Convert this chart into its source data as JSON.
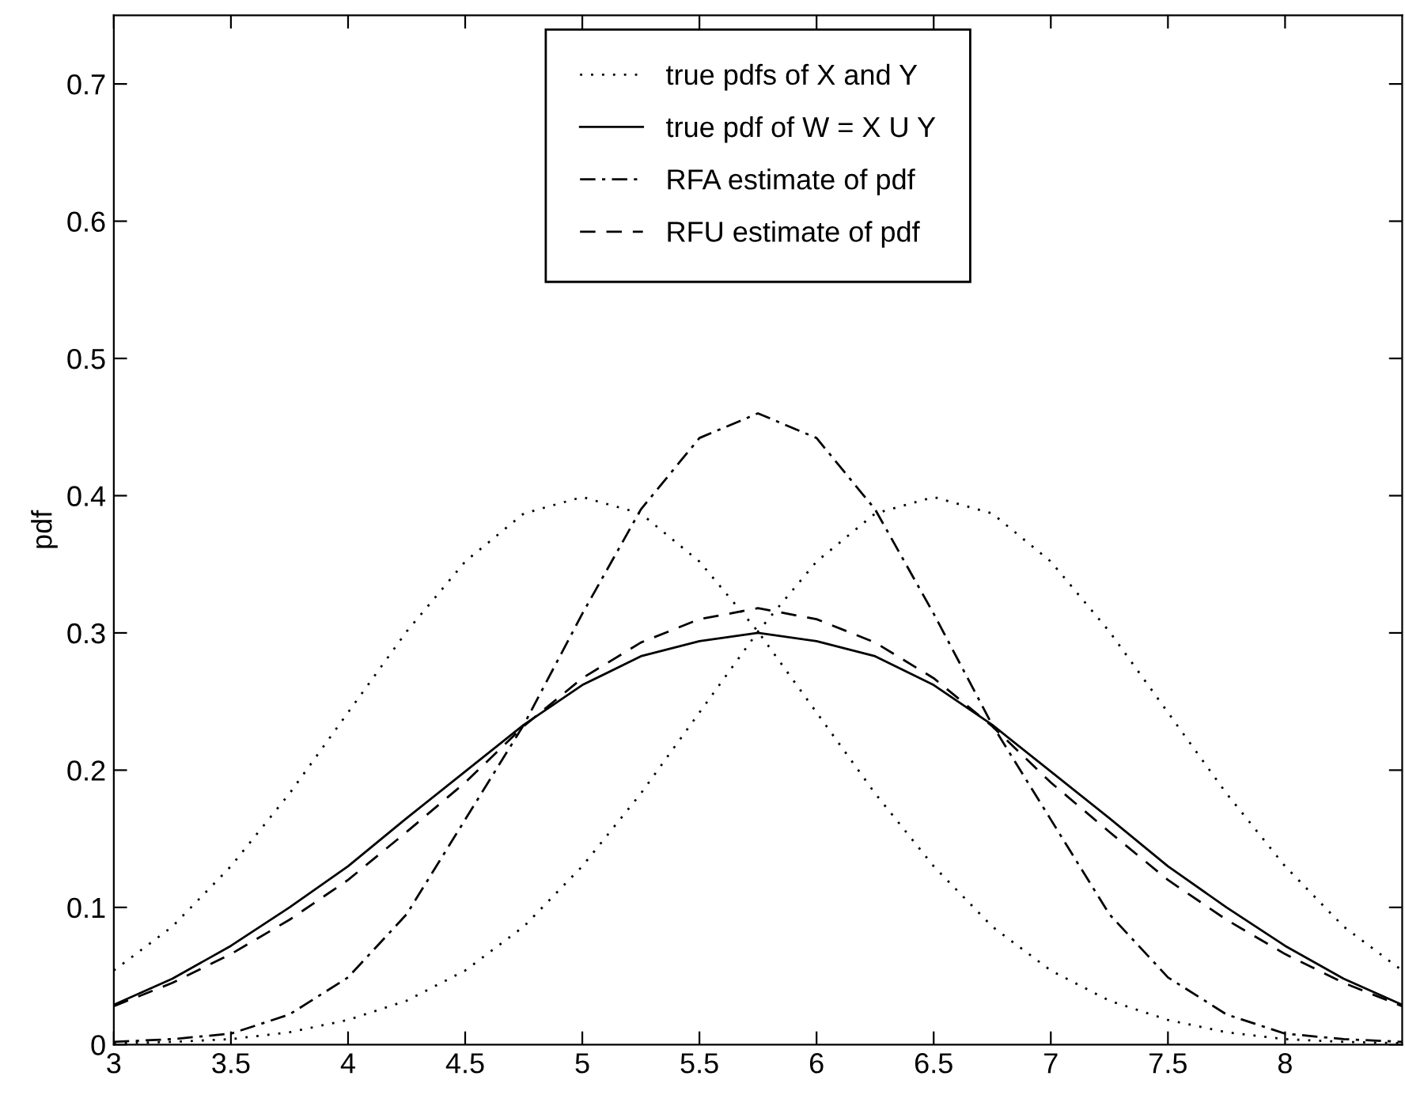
{
  "chart_data": {
    "type": "line",
    "ylabel": "pdf",
    "x": [
      3,
      3.25,
      3.5,
      3.75,
      4,
      4.25,
      4.5,
      4.75,
      5,
      5.25,
      5.5,
      5.75,
      6,
      6.25,
      6.5,
      6.75,
      7,
      7.25,
      7.5,
      7.75,
      8,
      8.25,
      8.5
    ],
    "series": [
      {
        "name": "true pdfs of X and Y",
        "color": "#000000",
        "line_style": "dotted",
        "values": [
          0.054,
          0.086,
          0.13,
          0.183,
          0.242,
          0.301,
          0.352,
          0.387,
          0.399,
          0.387,
          0.352,
          0.301,
          0.242,
          0.183,
          0.13,
          0.086,
          0.054,
          0.032,
          0.018,
          0.009,
          0.004,
          0.002,
          0.001
        ]
      },
      {
        "color": "#000000",
        "line_style": "dotted",
        "values": [
          0.001,
          0.002,
          0.004,
          0.009,
          0.018,
          0.032,
          0.054,
          0.086,
          0.13,
          0.183,
          0.242,
          0.301,
          0.352,
          0.387,
          0.399,
          0.387,
          0.352,
          0.301,
          0.242,
          0.183,
          0.13,
          0.086,
          0.054
        ]
      },
      {
        "name": "true pdf of W = X U Y",
        "color": "#000000",
        "line_style": "solid",
        "values": [
          0.029,
          0.048,
          0.072,
          0.1,
          0.13,
          0.165,
          0.199,
          0.233,
          0.262,
          0.283,
          0.294,
          0.3,
          0.294,
          0.283,
          0.262,
          0.233,
          0.199,
          0.165,
          0.13,
          0.1,
          0.072,
          0.048,
          0.029
        ]
      },
      {
        "name": "RFA estimate of pdf",
        "color": "#000000",
        "line_style": "dashdot",
        "values": [
          0.002,
          0.004,
          0.008,
          0.022,
          0.049,
          0.095,
          0.164,
          0.233,
          0.314,
          0.39,
          0.442,
          0.46,
          0.442,
          0.39,
          0.314,
          0.233,
          0.164,
          0.095,
          0.049,
          0.022,
          0.008,
          0.004,
          0.002
        ]
      },
      {
        "name": "RFU estimate of pdf",
        "color": "#000000",
        "line_style": "dashed",
        "values": [
          0.028,
          0.045,
          0.066,
          0.091,
          0.12,
          0.155,
          0.191,
          0.232,
          0.267,
          0.293,
          0.31,
          0.318,
          0.31,
          0.293,
          0.267,
          0.232,
          0.191,
          0.155,
          0.12,
          0.091,
          0.066,
          0.045,
          0.028
        ]
      }
    ],
    "xlim": [
      3,
      8.5
    ],
    "ylim": [
      0,
      0.75
    ],
    "xticks": [
      3,
      3.5,
      4,
      4.5,
      5,
      5.5,
      6,
      6.5,
      7,
      7.5,
      8
    ],
    "yticks": [
      0,
      0.1,
      0.2,
      0.3,
      0.4,
      0.5,
      0.6,
      0.7
    ],
    "grid": false,
    "legend": "top"
  }
}
